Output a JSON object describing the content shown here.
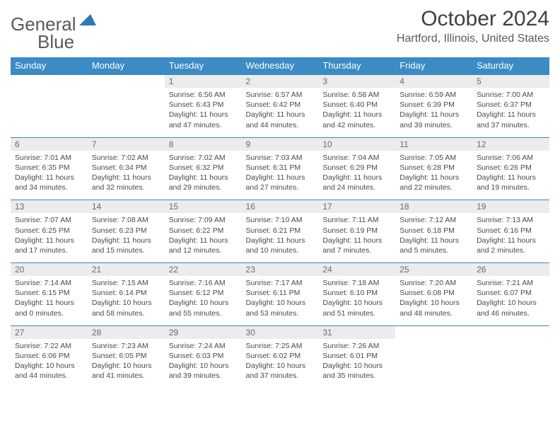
{
  "brand": {
    "word1": "General",
    "word2": "Blue"
  },
  "title": "October 2024",
  "location": "Hartford, Illinois, United States",
  "colors": {
    "header_bg": "#3b8bc4",
    "header_text": "#ffffff",
    "daynum_bg": "#ececec",
    "daynum_text": "#6a6a6a",
    "body_text": "#4a4a4a",
    "rule": "#3b8bc4",
    "logo_gray": "#5a5a5a",
    "logo_blue": "#2a7ab8",
    "page_bg": "#ffffff"
  },
  "typography": {
    "title_fontsize": 30,
    "location_fontsize": 16,
    "dayhead_fontsize": 13,
    "daynum_fontsize": 12,
    "cell_fontsize": 10.5
  },
  "day_headers": [
    "Sunday",
    "Monday",
    "Tuesday",
    "Wednesday",
    "Thursday",
    "Friday",
    "Saturday"
  ],
  "weeks": [
    {
      "nums": [
        "",
        "",
        "1",
        "2",
        "3",
        "4",
        "5"
      ],
      "cells": [
        null,
        null,
        {
          "sunrise": "Sunrise: 6:56 AM",
          "sunset": "Sunset: 6:43 PM",
          "daylight": "Daylight: 11 hours and 47 minutes."
        },
        {
          "sunrise": "Sunrise: 6:57 AM",
          "sunset": "Sunset: 6:42 PM",
          "daylight": "Daylight: 11 hours and 44 minutes."
        },
        {
          "sunrise": "Sunrise: 6:58 AM",
          "sunset": "Sunset: 6:40 PM",
          "daylight": "Daylight: 11 hours and 42 minutes."
        },
        {
          "sunrise": "Sunrise: 6:59 AM",
          "sunset": "Sunset: 6:39 PM",
          "daylight": "Daylight: 11 hours and 39 minutes."
        },
        {
          "sunrise": "Sunrise: 7:00 AM",
          "sunset": "Sunset: 6:37 PM",
          "daylight": "Daylight: 11 hours and 37 minutes."
        }
      ]
    },
    {
      "nums": [
        "6",
        "7",
        "8",
        "9",
        "10",
        "11",
        "12"
      ],
      "cells": [
        {
          "sunrise": "Sunrise: 7:01 AM",
          "sunset": "Sunset: 6:35 PM",
          "daylight": "Daylight: 11 hours and 34 minutes."
        },
        {
          "sunrise": "Sunrise: 7:02 AM",
          "sunset": "Sunset: 6:34 PM",
          "daylight": "Daylight: 11 hours and 32 minutes."
        },
        {
          "sunrise": "Sunrise: 7:02 AM",
          "sunset": "Sunset: 6:32 PM",
          "daylight": "Daylight: 11 hours and 29 minutes."
        },
        {
          "sunrise": "Sunrise: 7:03 AM",
          "sunset": "Sunset: 6:31 PM",
          "daylight": "Daylight: 11 hours and 27 minutes."
        },
        {
          "sunrise": "Sunrise: 7:04 AM",
          "sunset": "Sunset: 6:29 PM",
          "daylight": "Daylight: 11 hours and 24 minutes."
        },
        {
          "sunrise": "Sunrise: 7:05 AM",
          "sunset": "Sunset: 6:28 PM",
          "daylight": "Daylight: 11 hours and 22 minutes."
        },
        {
          "sunrise": "Sunrise: 7:06 AM",
          "sunset": "Sunset: 6:26 PM",
          "daylight": "Daylight: 11 hours and 19 minutes."
        }
      ]
    },
    {
      "nums": [
        "13",
        "14",
        "15",
        "16",
        "17",
        "18",
        "19"
      ],
      "cells": [
        {
          "sunrise": "Sunrise: 7:07 AM",
          "sunset": "Sunset: 6:25 PM",
          "daylight": "Daylight: 11 hours and 17 minutes."
        },
        {
          "sunrise": "Sunrise: 7:08 AM",
          "sunset": "Sunset: 6:23 PM",
          "daylight": "Daylight: 11 hours and 15 minutes."
        },
        {
          "sunrise": "Sunrise: 7:09 AM",
          "sunset": "Sunset: 6:22 PM",
          "daylight": "Daylight: 11 hours and 12 minutes."
        },
        {
          "sunrise": "Sunrise: 7:10 AM",
          "sunset": "Sunset: 6:21 PM",
          "daylight": "Daylight: 11 hours and 10 minutes."
        },
        {
          "sunrise": "Sunrise: 7:11 AM",
          "sunset": "Sunset: 6:19 PM",
          "daylight": "Daylight: 11 hours and 7 minutes."
        },
        {
          "sunrise": "Sunrise: 7:12 AM",
          "sunset": "Sunset: 6:18 PM",
          "daylight": "Daylight: 11 hours and 5 minutes."
        },
        {
          "sunrise": "Sunrise: 7:13 AM",
          "sunset": "Sunset: 6:16 PM",
          "daylight": "Daylight: 11 hours and 2 minutes."
        }
      ]
    },
    {
      "nums": [
        "20",
        "21",
        "22",
        "23",
        "24",
        "25",
        "26"
      ],
      "cells": [
        {
          "sunrise": "Sunrise: 7:14 AM",
          "sunset": "Sunset: 6:15 PM",
          "daylight": "Daylight: 11 hours and 0 minutes."
        },
        {
          "sunrise": "Sunrise: 7:15 AM",
          "sunset": "Sunset: 6:14 PM",
          "daylight": "Daylight: 10 hours and 58 minutes."
        },
        {
          "sunrise": "Sunrise: 7:16 AM",
          "sunset": "Sunset: 6:12 PM",
          "daylight": "Daylight: 10 hours and 55 minutes."
        },
        {
          "sunrise": "Sunrise: 7:17 AM",
          "sunset": "Sunset: 6:11 PM",
          "daylight": "Daylight: 10 hours and 53 minutes."
        },
        {
          "sunrise": "Sunrise: 7:18 AM",
          "sunset": "Sunset: 6:10 PM",
          "daylight": "Daylight: 10 hours and 51 minutes."
        },
        {
          "sunrise": "Sunrise: 7:20 AM",
          "sunset": "Sunset: 6:08 PM",
          "daylight": "Daylight: 10 hours and 48 minutes."
        },
        {
          "sunrise": "Sunrise: 7:21 AM",
          "sunset": "Sunset: 6:07 PM",
          "daylight": "Daylight: 10 hours and 46 minutes."
        }
      ]
    },
    {
      "nums": [
        "27",
        "28",
        "29",
        "30",
        "31",
        "",
        ""
      ],
      "cells": [
        {
          "sunrise": "Sunrise: 7:22 AM",
          "sunset": "Sunset: 6:06 PM",
          "daylight": "Daylight: 10 hours and 44 minutes."
        },
        {
          "sunrise": "Sunrise: 7:23 AM",
          "sunset": "Sunset: 6:05 PM",
          "daylight": "Daylight: 10 hours and 41 minutes."
        },
        {
          "sunrise": "Sunrise: 7:24 AM",
          "sunset": "Sunset: 6:03 PM",
          "daylight": "Daylight: 10 hours and 39 minutes."
        },
        {
          "sunrise": "Sunrise: 7:25 AM",
          "sunset": "Sunset: 6:02 PM",
          "daylight": "Daylight: 10 hours and 37 minutes."
        },
        {
          "sunrise": "Sunrise: 7:26 AM",
          "sunset": "Sunset: 6:01 PM",
          "daylight": "Daylight: 10 hours and 35 minutes."
        },
        null,
        null
      ]
    }
  ]
}
